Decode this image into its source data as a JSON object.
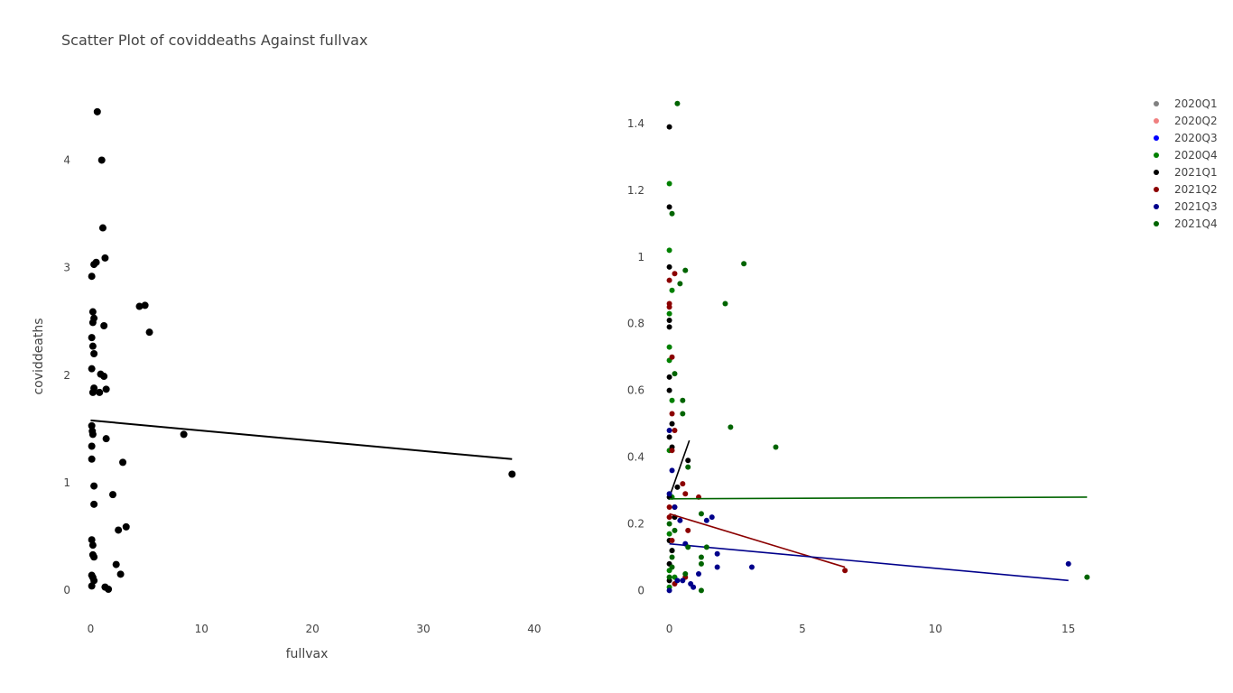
{
  "chart_data": [
    {
      "type": "scatter",
      "title": "Scatter Plot of coviddeaths Against fullvax",
      "xlabel": "fullvax",
      "ylabel": "coviddeaths",
      "xlim": [
        -1.5,
        40.5
      ],
      "ylim": [
        -0.25,
        4.65
      ],
      "xticks": [
        0,
        10,
        20,
        30,
        40
      ],
      "yticks": [
        0,
        1,
        2,
        3,
        4
      ],
      "grid": false,
      "series": [
        {
          "color": "#000000",
          "points": [
            [
              0.6,
              4.45
            ],
            [
              1.0,
              4.0
            ],
            [
              1.1,
              3.37
            ],
            [
              1.3,
              3.09
            ],
            [
              0.5,
              3.05
            ],
            [
              0.3,
              3.03
            ],
            [
              0.1,
              2.92
            ],
            [
              4.4,
              2.64
            ],
            [
              4.9,
              2.65
            ],
            [
              0.2,
              2.59
            ],
            [
              0.3,
              2.53
            ],
            [
              0.2,
              2.49
            ],
            [
              1.2,
              2.46
            ],
            [
              5.3,
              2.4
            ],
            [
              0.1,
              2.35
            ],
            [
              0.2,
              2.27
            ],
            [
              0.3,
              2.2
            ],
            [
              0.1,
              2.06
            ],
            [
              0.9,
              2.01
            ],
            [
              1.2,
              1.99
            ],
            [
              1.4,
              1.87
            ],
            [
              0.3,
              1.88
            ],
            [
              0.2,
              1.84
            ],
            [
              0.8,
              1.84
            ],
            [
              0.1,
              1.53
            ],
            [
              0.15,
              1.48
            ],
            [
              0.2,
              1.45
            ],
            [
              8.4,
              1.45
            ],
            [
              1.4,
              1.41
            ],
            [
              0.1,
              1.34
            ],
            [
              0.1,
              1.22
            ],
            [
              2.9,
              1.19
            ],
            [
              38.0,
              1.08
            ],
            [
              0.3,
              0.97
            ],
            [
              2.0,
              0.89
            ],
            [
              0.3,
              0.8
            ],
            [
              3.2,
              0.59
            ],
            [
              2.5,
              0.56
            ],
            [
              0.1,
              0.47
            ],
            [
              0.2,
              0.42
            ],
            [
              0.2,
              0.33
            ],
            [
              0.3,
              0.31
            ],
            [
              2.3,
              0.24
            ],
            [
              2.7,
              0.15
            ],
            [
              0.1,
              0.14
            ],
            [
              0.2,
              0.12
            ],
            [
              0.3,
              0.09
            ],
            [
              0.1,
              0.04
            ],
            [
              1.3,
              0.03
            ],
            [
              1.6,
              0.01
            ]
          ],
          "fit": [
            [
              0,
              1.58
            ],
            [
              38,
              1.22
            ]
          ]
        }
      ]
    },
    {
      "type": "scatter",
      "xlim": [
        -0.8,
        16.3
      ],
      "ylim": [
        -0.08,
        1.5
      ],
      "xticks": [
        0,
        5,
        10,
        15
      ],
      "yticks": [
        0,
        0.2,
        0.4,
        0.6,
        0.8,
        1,
        1.2,
        1.4
      ],
      "ytick_labels": [
        "0",
        "0.2",
        "0.4",
        "0.6",
        "0.8",
        "1",
        "1.2",
        "1.4"
      ],
      "grid": false,
      "legend_position": "top-right",
      "series": [
        {
          "name": "2020Q1",
          "color": "#808080",
          "points": []
        },
        {
          "name": "2020Q2",
          "color": "#f08080",
          "points": []
        },
        {
          "name": "2020Q3",
          "color": "#0000ff",
          "points": []
        },
        {
          "name": "2020Q4",
          "color": "#008000",
          "points": [
            [
              0.0,
              1.22
            ],
            [
              0.0,
              1.02
            ],
            [
              0.1,
              0.9
            ],
            [
              0.0,
              0.83
            ],
            [
              0.0,
              0.73
            ],
            [
              0.0,
              0.69
            ],
            [
              0.1,
              0.57
            ],
            [
              0.0,
              0.42
            ],
            [
              0.1,
              0.28
            ],
            [
              0.0,
              0.17
            ],
            [
              0.1,
              0.12
            ],
            [
              0.0,
              0.06
            ],
            [
              0.2,
              0.04
            ],
            [
              0.0,
              0.01
            ]
          ]
        },
        {
          "name": "2021Q1",
          "color": "#000000",
          "points": [
            [
              0.0,
              1.39
            ],
            [
              0.0,
              1.15
            ],
            [
              0.0,
              0.97
            ],
            [
              0.0,
              0.81
            ],
            [
              0.0,
              0.79
            ],
            [
              0.0,
              0.64
            ],
            [
              0.0,
              0.6
            ],
            [
              0.1,
              0.5
            ],
            [
              0.0,
              0.46
            ],
            [
              0.1,
              0.43
            ],
            [
              0.7,
              0.39
            ],
            [
              0.3,
              0.31
            ],
            [
              0.0,
              0.28
            ],
            [
              0.2,
              0.22
            ],
            [
              0.0,
              0.15
            ],
            [
              0.1,
              0.12
            ],
            [
              0.0,
              0.08
            ],
            [
              0.0,
              0.03
            ]
          ],
          "fit": [
            [
              0,
              0.28
            ],
            [
              0.75,
              0.45
            ]
          ]
        },
        {
          "name": "2021Q2",
          "color": "#8b0000",
          "points": [
            [
              0.0,
              0.93
            ],
            [
              0.2,
              0.95
            ],
            [
              0.0,
              0.86
            ],
            [
              0.0,
              0.85
            ],
            [
              0.1,
              0.7
            ],
            [
              0.1,
              0.53
            ],
            [
              0.2,
              0.48
            ],
            [
              0.1,
              0.42
            ],
            [
              0.5,
              0.32
            ],
            [
              0.6,
              0.29
            ],
            [
              1.1,
              0.28
            ],
            [
              0.0,
              0.25
            ],
            [
              0.2,
              0.25
            ],
            [
              0.0,
              0.22
            ],
            [
              0.7,
              0.18
            ],
            [
              0.1,
              0.15
            ],
            [
              6.6,
              0.06
            ],
            [
              0.2,
              0.02
            ],
            [
              0.6,
              0.04
            ]
          ],
          "fit": [
            [
              0,
              0.23
            ],
            [
              6.6,
              0.07
            ]
          ]
        },
        {
          "name": "2021Q3",
          "color": "#00008b",
          "points": [
            [
              0.0,
              0.48
            ],
            [
              0.1,
              0.36
            ],
            [
              0.0,
              0.29
            ],
            [
              0.2,
              0.25
            ],
            [
              0.4,
              0.21
            ],
            [
              1.4,
              0.21
            ],
            [
              1.6,
              0.22
            ],
            [
              0.6,
              0.14
            ],
            [
              1.8,
              0.11
            ],
            [
              1.1,
              0.05
            ],
            [
              1.8,
              0.07
            ],
            [
              3.1,
              0.07
            ],
            [
              15.0,
              0.08
            ],
            [
              0.3,
              0.03
            ],
            [
              0.5,
              0.03
            ],
            [
              0.9,
              0.01
            ],
            [
              0.8,
              0.02
            ],
            [
              0.0,
              0.0
            ]
          ],
          "fit": [
            [
              0,
              0.14
            ],
            [
              15.0,
              0.03
            ]
          ]
        },
        {
          "name": "2021Q4",
          "color": "#006400",
          "points": [
            [
              0.3,
              1.46
            ],
            [
              0.1,
              1.13
            ],
            [
              0.6,
              0.96
            ],
            [
              2.8,
              0.98
            ],
            [
              0.4,
              0.92
            ],
            [
              2.1,
              0.86
            ],
            [
              0.2,
              0.65
            ],
            [
              0.5,
              0.57
            ],
            [
              0.5,
              0.53
            ],
            [
              2.3,
              0.49
            ],
            [
              4.0,
              0.43
            ],
            [
              0.7,
              0.37
            ],
            [
              1.2,
              0.23
            ],
            [
              1.4,
              0.13
            ],
            [
              0.7,
              0.13
            ],
            [
              1.2,
              0.1
            ],
            [
              1.2,
              0.08
            ],
            [
              15.7,
              0.04
            ],
            [
              0.0,
              0.2
            ],
            [
              0.2,
              0.18
            ],
            [
              0.1,
              0.1
            ],
            [
              0.6,
              0.05
            ],
            [
              1.2,
              0.0
            ],
            [
              0.1,
              0.07
            ],
            [
              0.0,
              0.04
            ]
          ],
          "fit": [
            [
              0,
              0.275
            ],
            [
              15.7,
              0.28
            ]
          ]
        }
      ]
    }
  ]
}
